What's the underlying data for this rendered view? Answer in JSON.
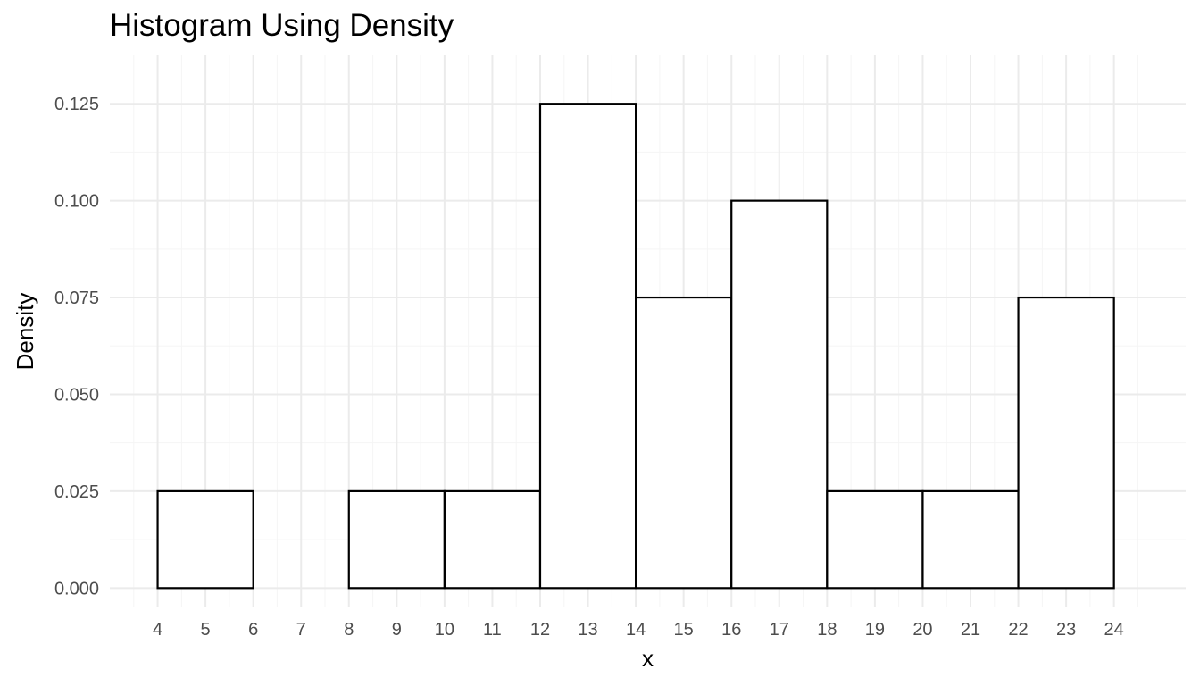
{
  "chart_data": {
    "type": "bar",
    "title": "Histogram Using Density",
    "xlabel": "x",
    "ylabel": "Density",
    "xlim": [
      3,
      25.5
    ],
    "ylim": [
      -0.005,
      0.1375
    ],
    "x_ticks": [
      4,
      5,
      6,
      7,
      8,
      9,
      10,
      11,
      12,
      13,
      14,
      15,
      16,
      17,
      18,
      19,
      20,
      21,
      22,
      23,
      24
    ],
    "y_ticks": [
      0,
      0.025,
      0.05,
      0.075,
      0.1,
      0.125
    ],
    "y_tick_labels": [
      "0.000",
      "0.025",
      "0.050",
      "0.075",
      "0.100",
      "0.125"
    ],
    "grid": true,
    "bins": [
      {
        "x0": 4,
        "x1": 6,
        "density": 0.025
      },
      {
        "x0": 6,
        "x1": 8,
        "density": 0
      },
      {
        "x0": 8,
        "x1": 10,
        "density": 0.025
      },
      {
        "x0": 10,
        "x1": 12,
        "density": 0.025
      },
      {
        "x0": 12,
        "x1": 14,
        "density": 0.125
      },
      {
        "x0": 14,
        "x1": 16,
        "density": 0.075
      },
      {
        "x0": 16,
        "x1": 18,
        "density": 0.1
      },
      {
        "x0": 18,
        "x1": 20,
        "density": 0.025
      },
      {
        "x0": 20,
        "x1": 22,
        "density": 0.025
      },
      {
        "x0": 22,
        "x1": 24,
        "density": 0.075
      }
    ],
    "colors": {
      "bar_fill": "#ffffff",
      "bar_stroke": "#000000",
      "grid_major": "#ebebeb",
      "grid_minor": "#f5f5f5",
      "tick_label": "#4d4d4d",
      "axis_title": "#000000"
    }
  }
}
